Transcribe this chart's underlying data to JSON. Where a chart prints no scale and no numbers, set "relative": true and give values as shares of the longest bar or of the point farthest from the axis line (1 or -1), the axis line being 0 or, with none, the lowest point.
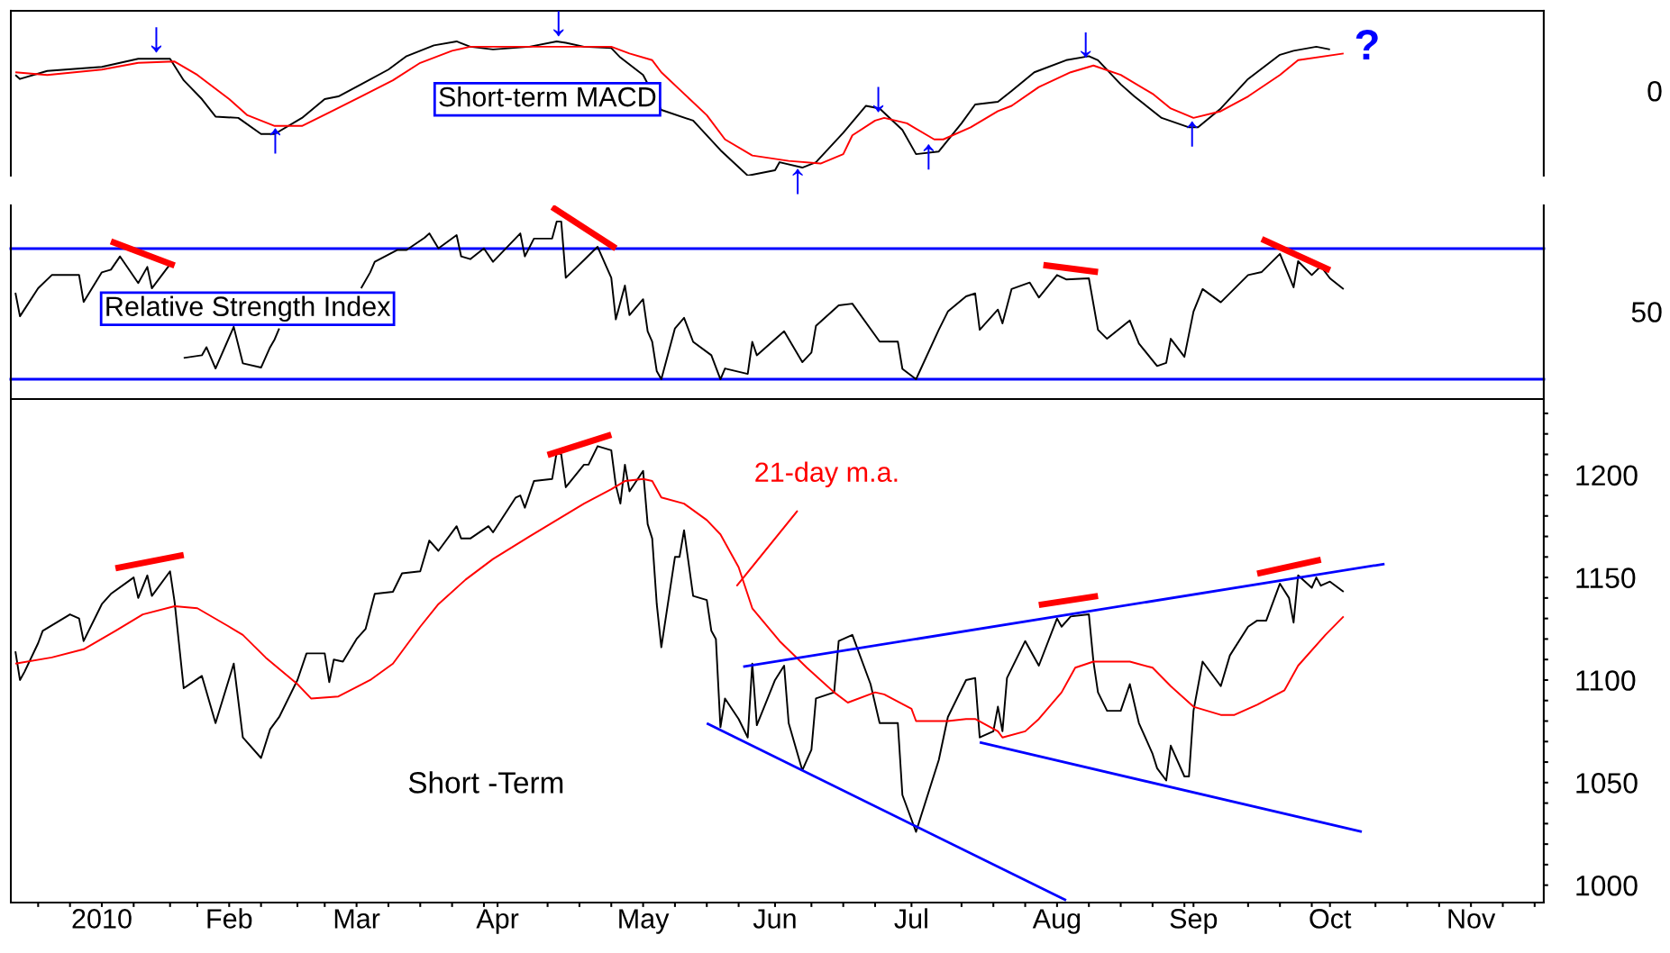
{
  "chart_data": [
    {
      "type": "line",
      "relative": true,
      "xlim": [
        "2009-12-15",
        "2010-11-17"
      ],
      "tick_labels": false,
      "series": [
        {
          "color": "#000000",
          "x": [
            "2009-12-16",
            "2009-12-17",
            "2009-12-23",
            "2010-01-04",
            "2010-01-12",
            "2010-01-19",
            "2010-01-22",
            "2010-01-26",
            "2010-01-29",
            "2010-02-03",
            "2010-02-08",
            "2010-02-11",
            "2010-02-17",
            "2010-02-22",
            "2010-02-25",
            "2010-03-02",
            "2010-03-08",
            "2010-03-12",
            "2010-03-18",
            "2010-03-23",
            "2010-03-26",
            "2010-03-31",
            "2010-04-08",
            "2010-04-14",
            "2010-04-16",
            "2010-04-20",
            "2010-04-26",
            "2010-04-28",
            "2010-05-03",
            "2010-05-07",
            "2010-05-14",
            "2010-05-20",
            "2010-05-26",
            "2010-06-01",
            "2010-06-02",
            "2010-06-07",
            "2010-06-10",
            "2010-06-16",
            "2010-06-21",
            "2010-06-24",
            "2010-06-29",
            "2010-07-02",
            "2010-07-07",
            "2010-07-12",
            "2010-07-15",
            "2010-07-20",
            "2010-07-23",
            "2010-07-28",
            "2010-08-04",
            "2010-08-09",
            "2010-08-11",
            "2010-08-16",
            "2010-08-19",
            "2010-08-25",
            "2010-08-31",
            "2010-09-02",
            "2010-09-07",
            "2010-09-13",
            "2010-09-20",
            "2010-09-23",
            "2010-09-28",
            "2010-10-01"
          ],
          "values": [
            0.75,
            0.72,
            0.78,
            0.81,
            0.87,
            0.87,
            0.71,
            0.57,
            0.44,
            0.43,
            0.31,
            0.31,
            0.43,
            0.57,
            0.59,
            0.68,
            0.79,
            0.89,
            0.97,
            1,
            0.96,
            0.94,
            0.96,
            1,
            0.99,
            0.96,
            0.95,
            0.88,
            0.75,
            0.49,
            0.41,
            0.19,
            0,
            0.04,
            0.1,
            0.06,
            0.1,
            0.32,
            0.52,
            0.5,
            0.34,
            0.16,
            0.18,
            0.39,
            0.53,
            0.55,
            0.63,
            0.77,
            0.86,
            0.89,
            0.86,
            0.68,
            0.59,
            0.43,
            0.36,
            0.36,
            0.5,
            0.72,
            0.9,
            0.93,
            0.96,
            0.94
          ]
        },
        {
          "color": "#ff0000",
          "x": [
            "2009-12-16",
            "2009-12-23",
            "2010-01-04",
            "2010-01-12",
            "2010-01-20",
            "2010-01-25",
            "2010-02-01",
            "2010-02-05",
            "2010-02-11",
            "2010-02-17",
            "2010-02-23",
            "2010-03-02",
            "2010-03-09",
            "2010-03-15",
            "2010-03-22",
            "2010-03-26",
            "2010-04-13",
            "2010-04-26",
            "2010-04-30",
            "2010-05-05",
            "2010-05-07",
            "2010-05-17",
            "2010-05-21",
            "2010-05-27",
            "2010-06-04",
            "2010-06-11",
            "2010-06-16",
            "2010-06-18",
            "2010-06-23",
            "2010-06-25",
            "2010-06-30",
            "2010-07-06",
            "2010-07-08",
            "2010-07-14",
            "2010-07-20",
            "2010-07-23",
            "2010-07-29",
            "2010-08-05",
            "2010-08-10",
            "2010-08-16",
            "2010-08-23",
            "2010-08-27",
            "2010-09-01",
            "2010-09-07",
            "2010-09-13",
            "2010-09-20",
            "2010-09-24",
            "2010-10-04"
          ],
          "values": [
            0.77,
            0.75,
            0.79,
            0.84,
            0.85,
            0.75,
            0.57,
            0.45,
            0.37,
            0.37,
            0.47,
            0.59,
            0.71,
            0.84,
            0.93,
            0.96,
            0.96,
            0.96,
            0.91,
            0.86,
            0.77,
            0.45,
            0.27,
            0.15,
            0.11,
            0.09,
            0.16,
            0.3,
            0.41,
            0.43,
            0.39,
            0.27,
            0.27,
            0.36,
            0.48,
            0.52,
            0.66,
            0.77,
            0.82,
            0.75,
            0.61,
            0.5,
            0.43,
            0.48,
            0.59,
            0.75,
            0.86,
            0.91
          ]
        }
      ],
      "annotations": [
        "Short-term MACD",
        "0",
        "↓",
        "↓",
        "↑",
        "↑",
        "↓",
        "↓",
        "↑",
        "↑",
        "?"
      ]
    },
    {
      "type": "line",
      "relative": true,
      "xlim": [
        "2009-12-15",
        "2010-11-17"
      ],
      "tick_labels": false,
      "series": [
        {
          "color": "#000000",
          "x": [
            "2009-12-16",
            "2009-12-17",
            "2009-12-21",
            "2009-12-24",
            "2009-12-30",
            "2009-12-31",
            "2010-01-04",
            "2010-01-06",
            "2010-01-08",
            "2010-01-12",
            "2010-01-14",
            "2010-01-15",
            "2010-01-19",
            "2010-01-20",
            "2010-01-22",
            "2010-01-26",
            "2010-01-27",
            "2010-01-29",
            "2010-02-02",
            "2010-02-04",
            "2010-02-08",
            "2010-02-10",
            "2010-02-11",
            "2010-02-12",
            "2010-02-22",
            "2010-03-02",
            "2010-03-04",
            "2010-03-05",
            "2010-03-10",
            "2010-03-12",
            "2010-03-16",
            "2010-03-17",
            "2010-03-19",
            "2010-03-23",
            "2010-03-24",
            "2010-03-26",
            "2010-03-29",
            "2010-03-31",
            "2010-04-06",
            "2010-04-07",
            "2010-04-09",
            "2010-04-13",
            "2010-04-14",
            "2010-04-15",
            "2010-04-16",
            "2010-04-20",
            "2010-04-22",
            "2010-04-23",
            "2010-04-26",
            "2010-04-27",
            "2010-04-29",
            "2010-04-30",
            "2010-05-03",
            "2010-05-04",
            "2010-05-05",
            "2010-05-06",
            "2010-05-07",
            "2010-05-10",
            "2010-05-12",
            "2010-05-14",
            "2010-05-18",
            "2010-05-20",
            "2010-05-21",
            "2010-05-26",
            "2010-05-27",
            "2010-05-28",
            "2010-06-03",
            "2010-06-07",
            "2010-06-09",
            "2010-06-10",
            "2010-06-15",
            "2010-06-18",
            "2010-06-24",
            "2010-06-28",
            "2010-06-29",
            "2010-07-02",
            "2010-07-07",
            "2010-07-09",
            "2010-07-13",
            "2010-07-15",
            "2010-07-16",
            "2010-07-20",
            "2010-07-21",
            "2010-07-23",
            "2010-07-27",
            "2010-07-29",
            "2010-08-02",
            "2010-08-04",
            "2010-08-09",
            "2010-08-11",
            "2010-08-13",
            "2010-08-18",
            "2010-08-20",
            "2010-08-24",
            "2010-08-26",
            "2010-08-27",
            "2010-08-30",
            "2010-09-01",
            "2010-09-03",
            "2010-09-07",
            "2010-09-13",
            "2010-09-16",
            "2010-09-20",
            "2010-09-23",
            "2010-09-24",
            "2010-09-27",
            "2010-09-29",
            "2010-10-01",
            "2010-10-04"
          ],
          "values": [
            0.554,
            0.431,
            0.577,
            0.646,
            0.646,
            0.506,
            0.66,
            0.674,
            0.743,
            0.604,
            0.688,
            0.577,
            0.702,
            null,
            0.214,
            0.228,
            0.27,
            0.159,
            0.376,
            0.186,
            0.164,
            0.27,
            0.311,
            0.368,
            null,
            0.577,
            0.66,
            0.715,
            0.777,
            0.777,
            0.841,
            0.863,
            0.785,
            0.854,
            0.743,
            0.729,
            0.785,
            0.715,
            0.863,
            0.743,
            0.836,
            0.836,
            0.925,
            0.925,
            0.632,
            0.724,
            0.771,
            0.793,
            0.632,
            0.415,
            0.591,
            0.437,
            0.52,
            0.353,
            0.298,
            0.145,
            0.103,
            0.368,
            0.423,
            0.298,
            0.228,
            0.103,
            0.159,
            0.131,
            0.298,
            0.228,
            0.353,
            0.192,
            0.242,
            0.381,
            0.488,
            0.497,
            0.299,
            0.299,
            0.157,
            0.103,
            0.361,
            0.456,
            0.535,
            0.55,
            0.361,
            0.466,
            0.394,
            0.573,
            0.607,
            0.529,
            0.646,
            0.623,
            0.629,
            0.361,
            0.314,
            0.409,
            0.289,
            0.172,
            0.188,
            0.314,
            0.22,
            0.456,
            0.573,
            0.504,
            0.646,
            0.662,
            0.756,
            0.582,
            0.718,
            0.646,
            0.692,
            0.629,
            0.573
          ]
        },
        {
          "color": "#ff0000",
          "x": [
            "2010-01-06",
            "2010-01-20"
          ],
          "values": [
            0.821,
            0.696
          ]
        },
        {
          "color": "#ff0000",
          "x": [
            "2010-04-13",
            "2010-04-27"
          ],
          "values": [
            1,
            0.785
          ]
        },
        {
          "color": "#ff0000",
          "x": [
            "2010-07-30",
            "2010-08-11"
          ],
          "values": [
            0.698,
            0.662
          ]
        },
        {
          "color": "#ff0000",
          "x": [
            "2010-09-16",
            "2010-10-01"
          ],
          "values": [
            0.834,
            0.671
          ]
        }
      ],
      "ref_lines": [
        {
          "axis": "y",
          "value": 0.784,
          "color": "#0000ff"
        },
        {
          "axis": "y",
          "value": 0.103,
          "color": "#0000ff"
        }
      ],
      "annotations": [
        "Relative Strength Index",
        "50"
      ]
    },
    {
      "type": "line",
      "xlim": [
        "2009-12-15",
        "2010-11-17"
      ],
      "ylim": [
        991.5,
        1237
      ],
      "xticks": [
        {
          "value": "2010-01-04",
          "label": "2010"
        },
        {
          "value": "2010-02-01",
          "label": "Feb"
        },
        {
          "value": "2010-03-01",
          "label": "Mar"
        },
        {
          "value": "2010-04-01",
          "label": "Apr"
        },
        {
          "value": "2010-05-03",
          "label": "May"
        },
        {
          "value": "2010-06-01",
          "label": "Jun"
        },
        {
          "value": "2010-07-01",
          "label": "Jul"
        },
        {
          "value": "2010-08-02",
          "label": "Aug"
        },
        {
          "value": "2010-09-01",
          "label": "Sep"
        },
        {
          "value": "2010-10-01",
          "label": "Oct"
        },
        {
          "value": "2010-11-01",
          "label": "Nov"
        },
        {
          "value": "2009-12-21",
          "label": null
        },
        {
          "value": "2009-12-28",
          "label": null
        },
        {
          "value": "2010-01-11",
          "label": null
        },
        {
          "value": "2010-01-19",
          "label": null
        },
        {
          "value": "2010-01-25",
          "label": null
        },
        {
          "value": "2010-02-08",
          "label": null
        },
        {
          "value": "2010-02-16",
          "label": null
        },
        {
          "value": "2010-02-22",
          "label": null
        },
        {
          "value": "2010-03-08",
          "label": null
        },
        {
          "value": "2010-03-15",
          "label": null
        },
        {
          "value": "2010-03-22",
          "label": null
        },
        {
          "value": "2010-03-29",
          "label": null
        },
        {
          "value": "2010-04-12",
          "label": null
        },
        {
          "value": "2010-04-19",
          "label": null
        },
        {
          "value": "2010-04-26",
          "label": null
        },
        {
          "value": "2010-05-10",
          "label": null
        },
        {
          "value": "2010-05-17",
          "label": null
        },
        {
          "value": "2010-05-24",
          "label": null
        },
        {
          "value": "2010-06-09",
          "label": null
        },
        {
          "value": "2010-06-16",
          "label": null
        },
        {
          "value": "2010-06-23",
          "label": null
        },
        {
          "value": "2010-07-12",
          "label": null
        },
        {
          "value": "2010-07-19",
          "label": null
        },
        {
          "value": "2010-07-26",
          "label": null
        },
        {
          "value": "2010-08-09",
          "label": null
        },
        {
          "value": "2010-08-16",
          "label": null
        },
        {
          "value": "2010-08-23",
          "label": null
        },
        {
          "value": "2010-08-30",
          "label": null
        },
        {
          "value": "2010-09-13",
          "label": null
        },
        {
          "value": "2010-09-20",
          "label": null
        },
        {
          "value": "2010-09-27",
          "label": null
        },
        {
          "value": "2010-10-11",
          "label": null
        },
        {
          "value": "2010-10-18",
          "label": null
        },
        {
          "value": "2010-10-25",
          "label": null
        },
        {
          "value": "2010-11-08",
          "label": null
        },
        {
          "value": "2010-11-15",
          "label": null
        }
      ],
      "yticks": [
        1000,
        {
          "value": 1010,
          "label": null
        },
        {
          "value": 1020,
          "label": null
        },
        {
          "value": 1030,
          "label": null
        },
        {
          "value": 1040,
          "label": null
        },
        1050,
        {
          "value": 1060,
          "label": null
        },
        {
          "value": 1070,
          "label": null
        },
        {
          "value": 1080,
          "label": null
        },
        {
          "value": 1090,
          "label": null
        },
        1100,
        {
          "value": 1110,
          "label": null
        },
        {
          "value": 1120,
          "label": null
        },
        {
          "value": 1130,
          "label": null
        },
        {
          "value": 1140,
          "label": null
        },
        1150,
        {
          "value": 1160,
          "label": null
        },
        {
          "value": 1170,
          "label": null
        },
        {
          "value": 1180,
          "label": null
        },
        {
          "value": 1190,
          "label": null
        },
        1200,
        {
          "value": 1210,
          "label": null
        },
        {
          "value": 1220,
          "label": null
        },
        {
          "value": 1230,
          "label": null
        }
      ],
      "series": [
        {
          "color": "#000000",
          "x": [
            "2009-12-16",
            "2009-12-17",
            "2009-12-18",
            "2009-12-21",
            "2009-12-22",
            "2009-12-28",
            "2009-12-30",
            "2009-12-31",
            "2010-01-04",
            "2010-01-06",
            "2010-01-11",
            "2010-01-12",
            "2010-01-14",
            "2010-01-15",
            "2010-01-19",
            "2010-01-20",
            "2010-01-22",
            "2010-01-26",
            "2010-01-29",
            "2010-02-02",
            "2010-02-04",
            "2010-02-08",
            "2010-02-10",
            "2010-02-12",
            "2010-02-16",
            "2010-02-18",
            "2010-02-22",
            "2010-02-23",
            "2010-02-24",
            "2010-02-26",
            "2010-03-01",
            "2010-03-03",
            "2010-03-05",
            "2010-03-09",
            "2010-03-11",
            "2010-03-15",
            "2010-03-17",
            "2010-03-19",
            "2010-03-23",
            "2010-03-24",
            "2010-03-26",
            "2010-03-30",
            "2010-03-31",
            "2010-04-05",
            "2010-04-06",
            "2010-04-07",
            "2010-04-09",
            "2010-04-13",
            "2010-04-14",
            "2010-04-15",
            "2010-04-16",
            "2010-04-20",
            "2010-04-21",
            "2010-04-23",
            "2010-04-26",
            "2010-04-27",
            "2010-04-28",
            "2010-04-29",
            "2010-04-30",
            "2010-05-03",
            "2010-05-04",
            "2010-05-05",
            "2010-05-06",
            "2010-05-07",
            "2010-05-10",
            "2010-05-11",
            "2010-05-12",
            "2010-05-14",
            "2010-05-17",
            "2010-05-18",
            "2010-05-19",
            "2010-05-20",
            "2010-05-21",
            "2010-05-24",
            "2010-05-26",
            "2010-05-27",
            "2010-05-28",
            "2010-06-01",
            "2010-06-03",
            "2010-06-04",
            "2010-06-07",
            "2010-06-09",
            "2010-06-10",
            "2010-06-14",
            "2010-06-15",
            "2010-06-18",
            "2010-06-22",
            "2010-06-24",
            "2010-06-28",
            "2010-06-29",
            "2010-07-02",
            "2010-07-07",
            "2010-07-09",
            "2010-07-13",
            "2010-07-15",
            "2010-07-16",
            "2010-07-19",
            "2010-07-20",
            "2010-07-21",
            "2010-07-22",
            "2010-07-26",
            "2010-07-29",
            "2010-08-02",
            "2010-08-03",
            "2010-08-05",
            "2010-08-09",
            "2010-08-10",
            "2010-08-11",
            "2010-08-13",
            "2010-08-16",
            "2010-08-18",
            "2010-08-20",
            "2010-08-23",
            "2010-08-24",
            "2010-08-26",
            "2010-08-27",
            "2010-08-30",
            "2010-08-31",
            "2010-09-01",
            "2010-09-03",
            "2010-09-07",
            "2010-09-09",
            "2010-09-13",
            "2010-09-15",
            "2010-09-17",
            "2010-09-20",
            "2010-09-22",
            "2010-09-23",
            "2010-09-24",
            "2010-09-27",
            "2010-09-28",
            "2010-09-29",
            "2010-10-01",
            "2010-10-04"
          ],
          "values": [
            1114,
            1100,
            1104,
            1118,
            1124,
            1132,
            1130,
            1119,
            1137,
            1142,
            1150,
            1140,
            1151,
            1141,
            1153,
            1138,
            1096,
            1102,
            1079,
            1108,
            1072,
            1062,
            1076,
            1082,
            1100,
            1113,
            1113,
            1099,
            1110,
            1109,
            1120,
            1125,
            1142,
            1143,
            1152,
            1153,
            1168,
            1163,
            1175,
            1169,
            1169,
            1175,
            1172,
            1189,
            1190,
            1184,
            1197,
            1198,
            1211,
            1210,
            1194,
            1205,
            1205,
            1214,
            1212,
            1195,
            1186,
            1205,
            1192,
            1202,
            1176,
            1169,
            1137,
            1116,
            1160,
            1160,
            1173,
            1141,
            1139,
            1124,
            1120,
            1077,
            1091,
            1081,
            1072,
            1108,
            1078,
            1100,
            1107,
            1079,
            1056,
            1066,
            1091,
            1094,
            1119,
            1122,
            1098,
            1079,
            1079,
            1044,
            1026,
            1061,
            1082,
            1100,
            1101,
            1072,
            1075,
            1087,
            1075,
            1101,
            1119,
            1107,
            1130,
            1126,
            1131,
            1132,
            1109,
            1094,
            1085,
            1085,
            1098,
            1079,
            1064,
            1057,
            1051,
            1068,
            1053,
            1053,
            1085,
            1109,
            1097,
            1112,
            1126,
            1129,
            1129,
            1147,
            1140,
            1128,
            1151,
            1145,
            1150,
            1146,
            1148,
            1143
          ]
        },
        {
          "color": "#ff0000",
          "x": [
            "2009-12-16",
            "2009-12-24",
            "2009-12-31",
            "2010-01-07",
            "2010-01-13",
            "2010-01-20",
            "2010-01-25",
            "2010-02-01",
            "2010-02-04",
            "2010-02-09",
            "2010-02-16",
            "2010-02-19",
            "2010-02-25",
            "2010-03-04",
            "2010-03-09",
            "2010-03-15",
            "2010-03-19",
            "2010-03-25",
            "2010-03-31",
            "2010-04-08",
            "2010-04-14",
            "2010-04-20",
            "2010-04-26",
            "2010-04-29",
            "2010-05-03",
            "2010-05-05",
            "2010-05-07",
            "2010-05-12",
            "2010-05-17",
            "2010-05-20",
            "2010-05-24",
            "2010-05-27",
            "2010-06-02",
            "2010-06-08",
            "2010-06-14",
            "2010-06-17",
            "2010-06-23",
            "2010-06-25",
            "2010-07-01",
            "2010-07-02",
            "2010-07-09",
            "2010-07-13",
            "2010-07-15",
            "2010-07-20",
            "2010-07-21",
            "2010-07-26",
            "2010-07-29",
            "2010-08-03",
            "2010-08-06",
            "2010-08-10",
            "2010-08-18",
            "2010-08-23",
            "2010-08-27",
            "2010-09-01",
            "2010-09-07",
            "2010-09-10",
            "2010-09-15",
            "2010-09-21",
            "2010-09-24",
            "2010-09-30",
            "2010-10-04"
          ],
          "values": [
            1108,
            1111,
            1115,
            1124,
            1132,
            1136,
            1135,
            1126,
            1122,
            1111,
            1098,
            1091,
            1092,
            1100,
            1108,
            1126,
            1137,
            1149,
            1159,
            1170,
            1178,
            1186,
            1193,
            1197,
            1198,
            1197,
            1189,
            1186,
            1178,
            1171,
            1155,
            1135,
            1119,
            1106,
            1094,
            1089,
            1094,
            1093,
            1086,
            1080,
            1080,
            1081,
            1081,
            1075,
            1072,
            1075,
            1081,
            1094,
            1106,
            1109,
            1109,
            1106,
            1097,
            1087,
            1083,
            1083,
            1088,
            1095,
            1107,
            1122,
            1131
          ]
        },
        {
          "color": "#0000ff",
          "x": [
            "2010-05-25",
            "2010-10-13"
          ],
          "values": [
            1106.5,
            1156.6
          ]
        },
        {
          "color": "#0000ff",
          "x": [
            "2010-05-17",
            "2010-08-04"
          ],
          "values": [
            1078.9,
            992.6
          ]
        },
        {
          "color": "#0000ff",
          "x": [
            "2010-07-16",
            "2010-10-08"
          ],
          "values": [
            1069.6,
            1026
          ]
        },
        {
          "color": "#ff0000",
          "x": [
            "2010-01-07",
            "2010-01-22"
          ],
          "values": [
            1154.5,
            1161
          ]
        },
        {
          "color": "#ff0000",
          "x": [
            "2010-04-12",
            "2010-04-26"
          ],
          "values": [
            1209.7,
            1219.6
          ]
        },
        {
          "color": "#ff0000",
          "x": [
            "2010-07-29",
            "2010-08-11"
          ],
          "values": [
            1136.6,
            1141
          ]
        },
        {
          "color": "#ff0000",
          "x": [
            "2010-09-15",
            "2010-09-29"
          ],
          "values": [
            1151.9,
            1158.7
          ]
        }
      ],
      "annotations": [
        "Short -Term",
        "21-day m.a."
      ]
    }
  ]
}
